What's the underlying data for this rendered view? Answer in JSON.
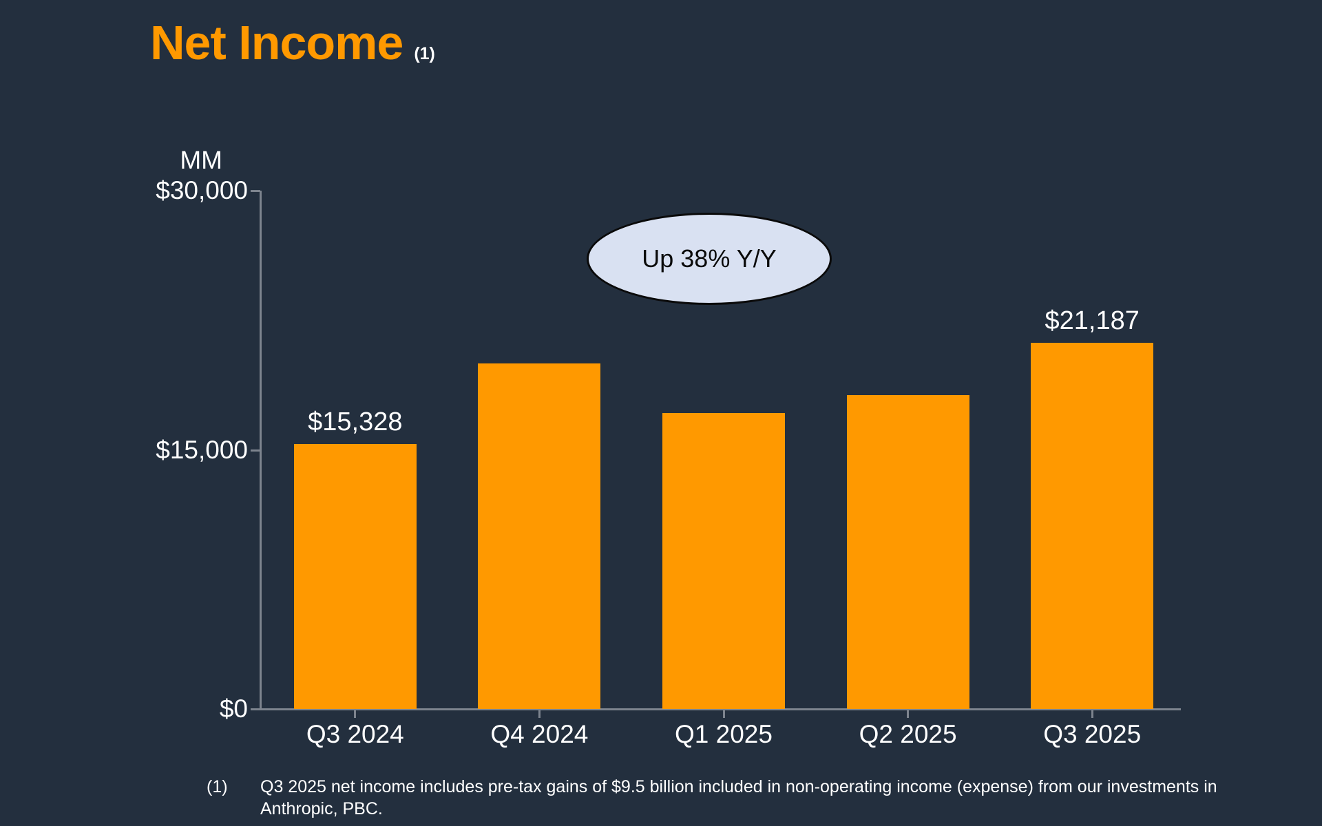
{
  "slide": {
    "title": "Net Income",
    "title_footnote_marker": "(1)",
    "footnote": {
      "marker": "(1)",
      "lines": [
        "Q3 2025 net income includes pre-tax gains of $9.5 billion included in non-operating income (expense) from our investments in",
        "Anthropic, PBC."
      ]
    }
  },
  "colors": {
    "background": "#232F3E",
    "accent": "#FF9900",
    "bar": "#FF9900",
    "text": "#FFFFFF",
    "axis": "#7d848e",
    "callout_fill": "#D9E1F2",
    "callout_border": "#0a0a0a",
    "callout_text": "#0a0a0a"
  },
  "chart_data": {
    "type": "bar",
    "title": "Net Income (1)",
    "unit_label": "MM",
    "categories": [
      "Q3 2024",
      "Q4 2024",
      "Q1 2025",
      "Q2 2025",
      "Q3 2025"
    ],
    "values": [
      15328,
      20004,
      17127,
      18164,
      21187
    ],
    "bar_labels": [
      "$15,328",
      "",
      "",
      "",
      "$21,187"
    ],
    "y_axis": {
      "min": 0,
      "max": 30000,
      "ticks": [
        {
          "value": 0,
          "label": "$0"
        },
        {
          "value": 15000,
          "label": "$15,000"
        },
        {
          "value": 30000,
          "label": "$30,000"
        }
      ]
    },
    "grid": false,
    "legend": false,
    "annotation": {
      "text": "Up 38% Y/Y"
    }
  }
}
